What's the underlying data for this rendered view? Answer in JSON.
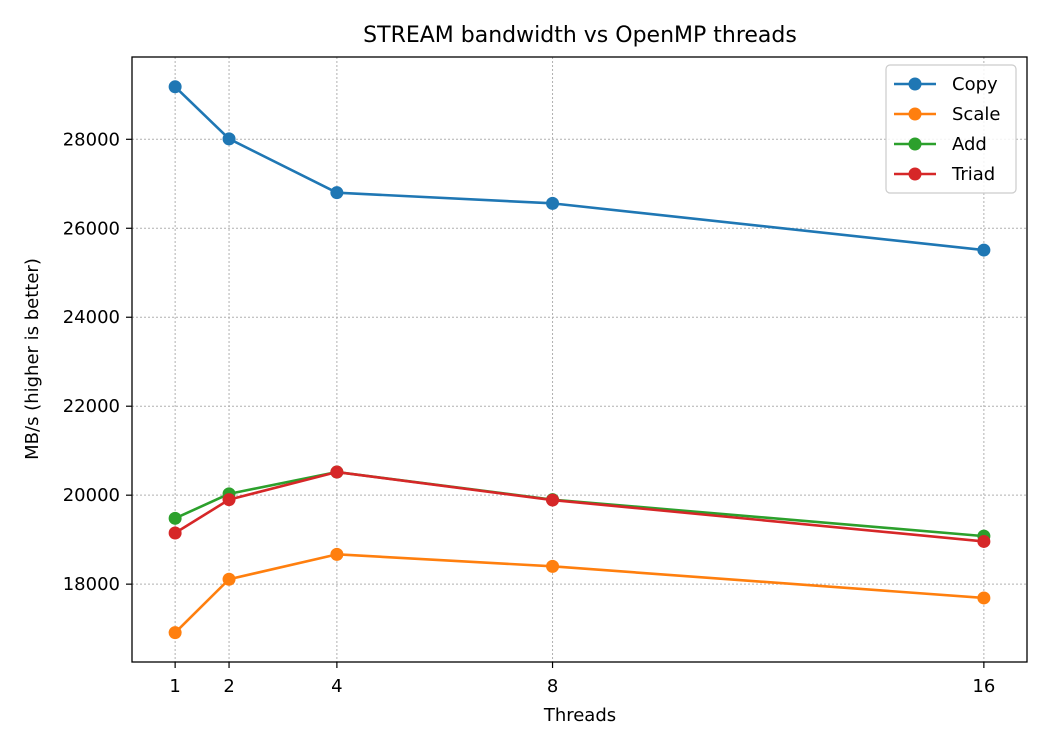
{
  "chart_data": {
    "type": "line",
    "title": "STREAM bandwidth vs OpenMP threads",
    "xlabel": "Threads",
    "ylabel": "MB/s (higher is better)",
    "x": [
      1,
      2,
      4,
      8,
      16
    ],
    "xticks": [
      "1",
      "2",
      "4",
      "8",
      "16"
    ],
    "yticks": [
      "18000",
      "20000",
      "22000",
      "24000",
      "26000",
      "28000"
    ],
    "ytick_values": [
      18000,
      20000,
      22000,
      24000,
      26000,
      28000
    ],
    "xlim": [
      0.2,
      16.8
    ],
    "ylim": [
      16250,
      29850
    ],
    "grid": true,
    "legend_position": "top-right",
    "series": [
      {
        "name": "Copy",
        "color": "#1f77b4",
        "values": [
          29180,
          28010,
          26800,
          26560,
          25510
        ]
      },
      {
        "name": "Scale",
        "color": "#ff7f0e",
        "values": [
          16910,
          18110,
          18670,
          18400,
          17690
        ]
      },
      {
        "name": "Add",
        "color": "#2ca02c",
        "values": [
          19480,
          20030,
          20520,
          19900,
          19080
        ]
      },
      {
        "name": "Triad",
        "color": "#d62728",
        "values": [
          19150,
          19900,
          20520,
          19890,
          18960
        ]
      }
    ]
  }
}
